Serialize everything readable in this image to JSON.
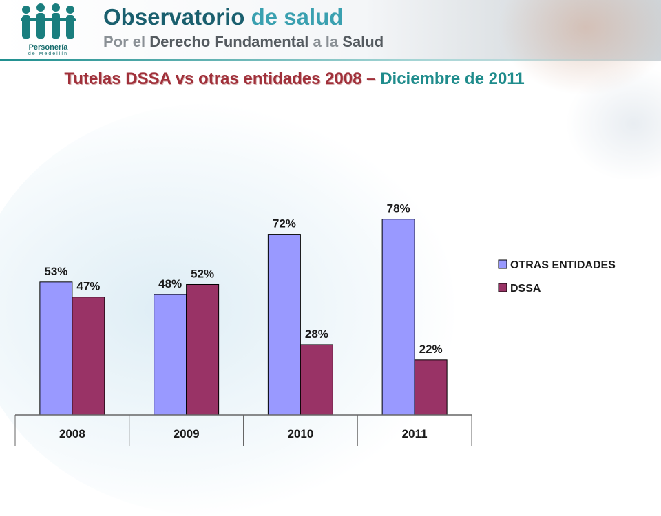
{
  "header": {
    "brand_title_strong": "Observatorio",
    "brand_title_light": "de salud",
    "brand_sub_1": "Por el",
    "brand_sub_2": "Derecho Fundamental",
    "brand_sub_3": "a la",
    "brand_sub_4": "Salud",
    "logo_text": "Personería",
    "logo_sub": "de Medellín"
  },
  "slide": {
    "title_dark": "Tutelas DSSA vs otras entidades 2008 –",
    "title_light": "Diciembre de 2011"
  },
  "colors": {
    "otras": "#9999ff",
    "dssa": "#993366",
    "brand": "#1a5f6e",
    "title_red": "#a0303a",
    "title_teal": "#1f8c8c"
  },
  "chart_data": {
    "type": "bar",
    "categories": [
      "2008",
      "2009",
      "2010",
      "2011"
    ],
    "series": [
      {
        "name": "OTRAS ENTIDADES",
        "values": [
          53,
          48,
          72,
          78
        ],
        "labels": [
          "53%",
          "48%",
          "72%",
          "78%"
        ]
      },
      {
        "name": "DSSA",
        "values": [
          47,
          52,
          28,
          22
        ],
        "labels": [
          "47%",
          "52%",
          "28%",
          "22%"
        ]
      }
    ],
    "ylim": [
      0,
      100
    ],
    "legend_position": "right",
    "grid": false
  }
}
